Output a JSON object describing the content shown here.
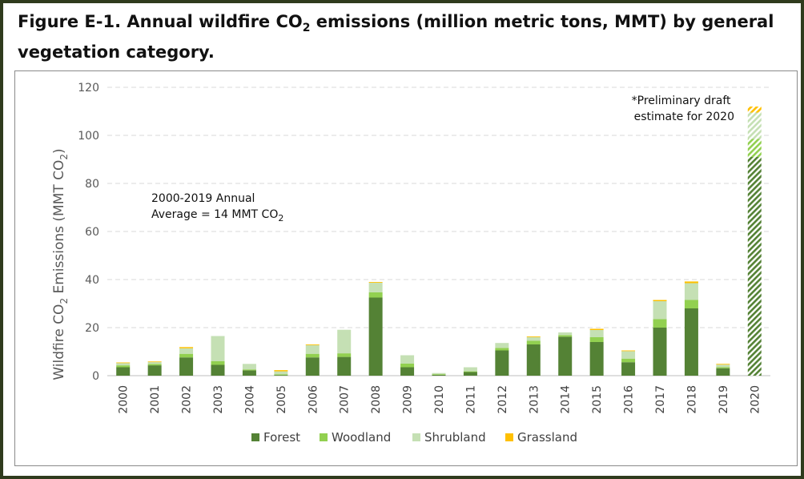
{
  "figure": {
    "title_prefix": "Figure E-1. Annual wildfire CO",
    "title_sub": "2",
    "title_suffix": " emissions (million metric tons, MMT) by general",
    "title_line2": "vegetation category."
  },
  "chart_data": {
    "type": "bar",
    "stacked": true,
    "ylabel_prefix": "Wildfire CO",
    "ylabel_sub": "2",
    "ylabel_suffix": " Emissions (MMT CO",
    "ylabel_sub2": "2",
    "ylabel_close": ")",
    "ylim": [
      0,
      120
    ],
    "yticks": [
      0,
      20,
      40,
      60,
      80,
      100,
      120
    ],
    "grid": true,
    "legend_position": "bottom",
    "categories": [
      "2000",
      "2001",
      "2002",
      "2003",
      "2004",
      "2005",
      "2006",
      "2007",
      "2008",
      "2009",
      "2010",
      "2011",
      "2012",
      "2013",
      "2014",
      "2015",
      "2016",
      "2017",
      "2018",
      "2019",
      "2020"
    ],
    "series": [
      {
        "name": "Forest",
        "color": "#548235",
        "values": [
          3.5,
          4.3,
          7.6,
          4.5,
          2.2,
          0.3,
          7.6,
          7.8,
          32.5,
          3.5,
          0.4,
          1.5,
          10.5,
          13.0,
          16.2,
          14.0,
          5.6,
          20.0,
          28.0,
          3.1,
          91.0
        ]
      },
      {
        "name": "Woodland",
        "color": "#92d050",
        "values": [
          0.8,
          0.6,
          1.5,
          1.5,
          0.4,
          0.2,
          1.5,
          1.5,
          2.2,
          1.5,
          0.2,
          0.3,
          1.0,
          1.5,
          0.7,
          2.0,
          1.5,
          3.5,
          3.5,
          0.5,
          7.5
        ]
      },
      {
        "name": "Shrubland",
        "color": "#c5e0b4",
        "values": [
          1.0,
          0.8,
          2.3,
          10.5,
          2.3,
          1.3,
          3.6,
          9.8,
          4.0,
          3.5,
          0.5,
          1.7,
          2.1,
          1.5,
          1.1,
          3.0,
          3.1,
          7.5,
          7.0,
          1.0,
          11.0
        ]
      },
      {
        "name": "Grassland",
        "color": "#ffc000",
        "values": [
          0.2,
          0.2,
          0.5,
          0.0,
          0.0,
          0.5,
          0.3,
          0.0,
          0.3,
          0.0,
          0.0,
          0.0,
          0.0,
          0.3,
          0.0,
          0.5,
          0.3,
          0.5,
          0.7,
          0.3,
          2.5
        ]
      }
    ],
    "preliminary_category": "2020",
    "annotations": {
      "average_line1": "2000-2019 Annual",
      "average_line2_prefix": "Average = 14 MMT CO",
      "average_line2_sub": "2",
      "prelim_line1": "*Preliminary draft",
      "prelim_line2": "estimate for 2020"
    }
  }
}
